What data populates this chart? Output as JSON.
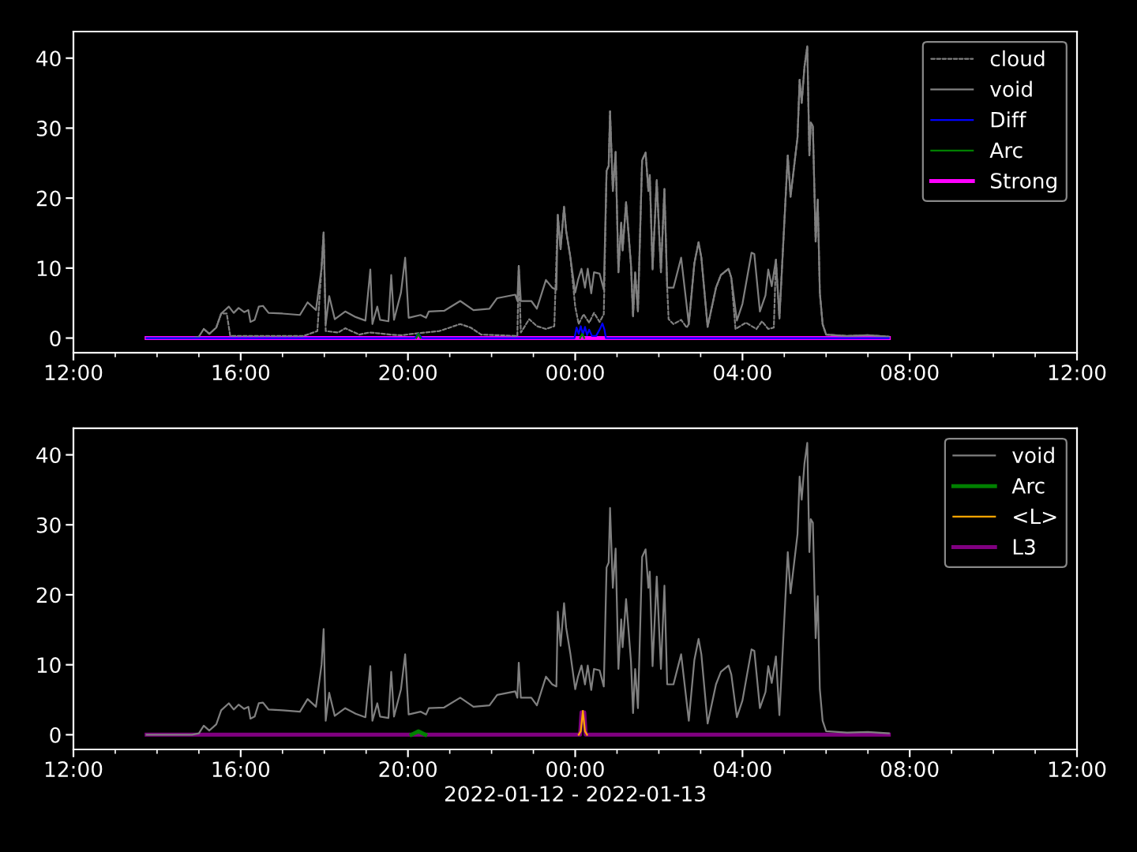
{
  "chart_data": [
    {
      "type": "line",
      "legend": "top right",
      "xlim": [
        "2022-01-12T12:00",
        "2022-01-13T12:00"
      ],
      "ylim": [
        -2.1,
        43.8
      ],
      "yticks": [
        0,
        10,
        20,
        30,
        40
      ],
      "xticks": [
        {
          "value": "2022-01-12T12:00",
          "label": "12:00"
        },
        {
          "value": "2022-01-12T13:00",
          "label": null
        },
        {
          "value": "2022-01-12T14:00",
          "label": null
        },
        {
          "value": "2022-01-12T15:00",
          "label": null
        },
        {
          "value": "2022-01-12T16:00",
          "label": "16:00"
        },
        {
          "value": "2022-01-12T17:00",
          "label": null
        },
        {
          "value": "2022-01-12T18:00",
          "label": null
        },
        {
          "value": "2022-01-12T19:00",
          "label": null
        },
        {
          "value": "2022-01-12T20:00",
          "label": "20:00"
        },
        {
          "value": "2022-01-12T21:00",
          "label": null
        },
        {
          "value": "2022-01-12T22:00",
          "label": null
        },
        {
          "value": "2022-01-12T23:00",
          "label": null
        },
        {
          "value": "2022-01-13T00:00",
          "label": "00:00"
        },
        {
          "value": "2022-01-13T01:00",
          "label": null
        },
        {
          "value": "2022-01-13T02:00",
          "label": null
        },
        {
          "value": "2022-01-13T03:00",
          "label": null
        },
        {
          "value": "2022-01-13T04:00",
          "label": "04:00"
        },
        {
          "value": "2022-01-13T05:00",
          "label": null
        },
        {
          "value": "2022-01-13T06:00",
          "label": null
        },
        {
          "value": "2022-01-13T07:00",
          "label": null
        },
        {
          "value": "2022-01-13T08:00",
          "label": "08:00"
        },
        {
          "value": "2022-01-13T09:00",
          "label": null
        },
        {
          "value": "2022-01-13T10:00",
          "label": null
        },
        {
          "value": "2022-01-13T11:00",
          "label": null
        },
        {
          "value": "2022-01-13T12:00",
          "label": "12:00"
        }
      ],
      "series": [
        {
          "name": "cloud",
          "color": "#808080",
          "line_style": "dashed",
          "x": [
            "2022-01-12T15:07",
            "2022-01-12T15:15",
            "2022-01-12T15:25",
            "2022-01-12T15:32",
            "2022-01-12T15:40",
            "2022-01-12T15:45",
            "2022-01-12T17:30",
            "2022-01-12T17:50",
            "2022-01-12T17:56",
            "2022-01-12T17:59",
            "2022-01-12T18:02",
            "2022-01-12T18:20",
            "2022-01-12T18:30",
            "2022-01-12T18:50",
            "2022-01-12T19:05",
            "2022-01-12T19:35",
            "2022-01-12T19:50",
            "2022-01-12T20:15",
            "2022-01-12T20:45",
            "2022-01-12T21:15",
            "2022-01-12T21:30",
            "2022-01-12T21:45",
            "2022-01-12T22:37",
            "2022-01-12T22:39",
            "2022-01-12T22:42",
            "2022-01-12T22:54",
            "2022-01-12T23:05",
            "2022-01-12T23:18",
            "2022-01-12T23:30",
            "2022-01-12T23:35",
            "2022-01-12T23:39",
            "2022-01-12T23:44",
            "2022-01-12T23:47",
            "2022-01-12T23:53",
            "2022-01-13T00:00",
            "2022-01-13T00:05",
            "2022-01-13T00:12",
            "2022-01-13T00:20",
            "2022-01-13T00:27",
            "2022-01-13T00:35",
            "2022-01-13T00:41",
            "2022-01-13T00:45",
            "2022-01-13T00:48",
            "2022-01-13T00:50",
            "2022-01-13T00:54",
            "2022-01-13T00:58",
            "2022-01-13T01:00",
            "2022-01-13T01:02",
            "2022-01-13T01:06",
            "2022-01-13T01:08",
            "2022-01-13T01:13",
            "2022-01-13T01:20",
            "2022-01-13T01:23",
            "2022-01-13T01:26",
            "2022-01-13T01:30",
            "2022-01-13T01:36",
            "2022-01-13T01:41",
            "2022-01-13T01:45",
            "2022-01-13T01:47",
            "2022-01-13T01:51",
            "2022-01-13T01:57",
            "2022-01-13T02:03",
            "2022-01-13T02:08",
            "2022-01-13T02:12",
            "2022-01-13T02:14",
            "2022-01-13T02:21",
            "2022-01-13T02:32",
            "2022-01-13T02:40",
            "2022-01-13T02:43",
            "2022-01-13T02:51",
            "2022-01-13T02:57",
            "2022-01-13T03:01",
            "2022-01-13T03:10",
            "2022-01-13T03:22",
            "2022-01-13T03:29",
            "2022-01-13T03:40",
            "2022-01-13T03:44",
            "2022-01-13T03:50",
            "2022-01-13T04:05",
            "2022-01-13T04:20",
            "2022-01-13T04:28",
            "2022-01-13T04:37",
            "2022-01-13T04:45",
            "2022-01-13T04:48",
            "2022-01-13T04:53",
            "2022-01-13T05:05",
            "2022-01-13T05:09",
            "2022-01-13T05:19",
            "2022-01-13T05:22",
            "2022-01-13T05:25",
            "2022-01-13T05:29",
            "2022-01-13T05:33",
            "2022-01-13T05:36",
            "2022-01-13T05:38",
            "2022-01-13T05:41",
            "2022-01-13T05:45",
            "2022-01-13T05:48",
            "2022-01-13T05:51",
            "2022-01-13T05:55",
            "2022-01-13T06:00",
            "2022-01-13T06:30",
            "2022-01-13T07:00",
            "2022-01-13T07:30"
          ],
          "values": [
            1.3,
            0.6,
            1.5,
            3.5,
            3.5,
            0.3,
            0.3,
            1.0,
            10.0,
            15.1,
            1.0,
            0.8,
            1.4,
            0.5,
            0.8,
            0.5,
            0.4,
            0.7,
            1.0,
            2.0,
            1.5,
            0.5,
            0.3,
            10.3,
            0.8,
            2.7,
            1.7,
            1.3,
            1.7,
            17.6,
            12.7,
            18.8,
            15.3,
            11.6,
            4.5,
            2.0,
            3.4,
            2.2,
            3.6,
            2.3,
            3.4,
            23.9,
            24.6,
            32.4,
            21.0,
            26.6,
            18.0,
            9.4,
            16.5,
            12.5,
            19.4,
            10.5,
            3.1,
            9.4,
            3.8,
            25.4,
            26.5,
            21.0,
            23.3,
            9.8,
            22.6,
            9.4,
            21.3,
            7.2,
            2.7,
            2.0,
            2.6,
            1.5,
            2.0,
            10.7,
            13.7,
            11.5,
            1.6,
            7.2,
            9.0,
            9.9,
            8.6,
            1.3,
            2.2,
            1.3,
            2.4,
            1.3,
            1.5,
            11.2,
            2.8,
            26.1,
            20.2,
            28.7,
            36.9,
            33.6,
            38.8,
            41.7,
            26.1,
            30.8,
            30.3,
            13.8,
            19.8,
            6.5,
            2.0,
            0.5,
            0.3,
            0.4,
            0.2
          ]
        },
        {
          "name": "void",
          "color": "#808080",
          "x": [
            "2022-01-12T13:45",
            "2022-01-12T14:50",
            "2022-01-12T15:00",
            "2022-01-12T15:07",
            "2022-01-12T15:15",
            "2022-01-12T15:25",
            "2022-01-12T15:32",
            "2022-01-12T15:43",
            "2022-01-12T15:50",
            "2022-01-12T15:57",
            "2022-01-12T16:05",
            "2022-01-12T16:11",
            "2022-01-12T16:14",
            "2022-01-12T16:20",
            "2022-01-12T16:26",
            "2022-01-12T16:32",
            "2022-01-12T16:40",
            "2022-01-12T17:00",
            "2022-01-12T17:25",
            "2022-01-12T17:36",
            "2022-01-12T17:48",
            "2022-01-12T17:56",
            "2022-01-12T17:59",
            "2022-01-12T18:02",
            "2022-01-12T18:07",
            "2022-01-12T18:15",
            "2022-01-12T18:30",
            "2022-01-12T18:45",
            "2022-01-12T18:59",
            "2022-01-12T19:06",
            "2022-01-12T19:09",
            "2022-01-12T19:16",
            "2022-01-12T19:20",
            "2022-01-12T19:32",
            "2022-01-12T19:36",
            "2022-01-12T19:40",
            "2022-01-12T19:50",
            "2022-01-12T19:56",
            "2022-01-12T20:01",
            "2022-01-12T20:18",
            "2022-01-12T20:26",
            "2022-01-12T20:30",
            "2022-01-12T20:52",
            "2022-01-12T21:15",
            "2022-01-12T21:34",
            "2022-01-12T21:57",
            "2022-01-12T22:08",
            "2022-01-12T22:34",
            "2022-01-12T22:37",
            "2022-01-12T22:39",
            "2022-01-12T22:42",
            "2022-01-12T22:57",
            "2022-01-12T23:05",
            "2022-01-12T23:18",
            "2022-01-12T23:27",
            "2022-01-12T23:33",
            "2022-01-12T23:35",
            "2022-01-12T23:39",
            "2022-01-12T23:44",
            "2022-01-12T23:47",
            "2022-01-12T23:53",
            "2022-01-13T00:00",
            "2022-01-13T00:04",
            "2022-01-13T00:09",
            "2022-01-13T00:14",
            "2022-01-13T00:18",
            "2022-01-13T00:23",
            "2022-01-13T00:27",
            "2022-01-13T00:35",
            "2022-01-13T00:41",
            "2022-01-13T00:45",
            "2022-01-13T00:48",
            "2022-01-13T00:50",
            "2022-01-13T00:54",
            "2022-01-13T00:58",
            "2022-01-13T01:00",
            "2022-01-13T01:02",
            "2022-01-13T01:06",
            "2022-01-13T01:08",
            "2022-01-13T01:13",
            "2022-01-13T01:20",
            "2022-01-13T01:23",
            "2022-01-13T01:26",
            "2022-01-13T01:30",
            "2022-01-13T01:36",
            "2022-01-13T01:41",
            "2022-01-13T01:45",
            "2022-01-13T01:47",
            "2022-01-13T01:51",
            "2022-01-13T01:57",
            "2022-01-13T02:03",
            "2022-01-13T02:08",
            "2022-01-13T02:12",
            "2022-01-13T02:21",
            "2022-01-13T02:32",
            "2022-01-13T02:43",
            "2022-01-13T02:51",
            "2022-01-13T02:57",
            "2022-01-13T03:01",
            "2022-01-13T03:10",
            "2022-01-13T03:22",
            "2022-01-13T03:29",
            "2022-01-13T03:40",
            "2022-01-13T03:44",
            "2022-01-13T03:52",
            "2022-01-13T04:00",
            "2022-01-13T04:13",
            "2022-01-13T04:17",
            "2022-01-13T04:25",
            "2022-01-13T04:33",
            "2022-01-13T04:37",
            "2022-01-13T04:42",
            "2022-01-13T04:48",
            "2022-01-13T04:53",
            "2022-01-13T05:05",
            "2022-01-13T05:09",
            "2022-01-13T05:19",
            "2022-01-13T05:22",
            "2022-01-13T05:25",
            "2022-01-13T05:29",
            "2022-01-13T05:33",
            "2022-01-13T05:36",
            "2022-01-13T05:38",
            "2022-01-13T05:41",
            "2022-01-13T05:45",
            "2022-01-13T05:48",
            "2022-01-13T05:51",
            "2022-01-13T05:55",
            "2022-01-13T06:00",
            "2022-01-13T06:30",
            "2022-01-13T07:00",
            "2022-01-13T07:30"
          ],
          "values": [
            0,
            0,
            0.2,
            1.3,
            0.6,
            1.5,
            3.5,
            4.5,
            3.6,
            4.3,
            3.7,
            4.0,
            2.3,
            2.6,
            4.5,
            4.6,
            3.6,
            3.5,
            3.3,
            5.1,
            4.0,
            10.0,
            15.1,
            2.0,
            6.0,
            2.7,
            3.8,
            3.0,
            2.5,
            9.8,
            2.0,
            4.5,
            2.6,
            2.4,
            9.0,
            2.6,
            6.5,
            11.5,
            2.9,
            3.3,
            2.9,
            3.8,
            3.9,
            5.3,
            4.0,
            4.2,
            5.7,
            6.2,
            5.3,
            10.3,
            5.3,
            5.3,
            4.2,
            8.3,
            7.2,
            6.9,
            17.6,
            12.7,
            18.8,
            15.3,
            11.6,
            6.5,
            8.3,
            9.9,
            7.2,
            9.9,
            6.4,
            9.4,
            9.2,
            6.9,
            23.9,
            24.6,
            32.4,
            21.0,
            26.6,
            18.0,
            9.4,
            16.5,
            12.5,
            19.4,
            10.5,
            3.1,
            9.4,
            3.8,
            25.4,
            26.5,
            21.0,
            23.3,
            9.8,
            22.6,
            9.4,
            21.3,
            7.2,
            7.2,
            11.5,
            2.0,
            10.7,
            13.7,
            11.5,
            1.6,
            7.2,
            9.0,
            9.9,
            8.6,
            2.5,
            4.9,
            12.2,
            12.0,
            3.8,
            6.1,
            9.8,
            7.4,
            11.2,
            2.8,
            26.1,
            20.2,
            28.7,
            36.9,
            33.6,
            38.8,
            41.7,
            26.1,
            30.8,
            30.3,
            13.8,
            19.8,
            6.5,
            2.0,
            0.5,
            0.3,
            0.4,
            0.2
          ]
        },
        {
          "name": "Diff",
          "color": "#0000ff",
          "x": [
            "2022-01-12T13:45",
            "2022-01-12T20:10",
            "2022-01-12T20:15",
            "2022-01-12T20:20",
            "2022-01-12T23:59",
            "2022-01-13T00:02",
            "2022-01-13T00:05",
            "2022-01-13T00:08",
            "2022-01-13T00:11",
            "2022-01-13T00:14",
            "2022-01-13T00:17",
            "2022-01-13T00:20",
            "2022-01-13T00:24",
            "2022-01-13T00:30",
            "2022-01-13T00:36",
            "2022-01-13T00:39",
            "2022-01-13T00:42",
            "2022-01-13T00:44",
            "2022-01-13T07:30"
          ],
          "values": [
            0,
            0,
            0.6,
            0,
            0,
            1.5,
            0.6,
            1.7,
            0.5,
            1.6,
            0.4,
            1.2,
            0.3,
            0.3,
            1.4,
            2.1,
            1.2,
            0,
            0
          ]
        },
        {
          "name": "Arc",
          "color": "#008000",
          "x": [
            "2022-01-12T20:12",
            "2022-01-12T20:15",
            "2022-01-12T20:18",
            "2022-01-12T22:00",
            "2022-01-13T00:07",
            "2022-01-13T00:10",
            "2022-01-13T00:13"
          ],
          "values": [
            0,
            0.6,
            0,
            null,
            0,
            0.6,
            0
          ]
        },
        {
          "name": "Strong",
          "color": "#ff00ff",
          "x": [
            "2022-01-12T13:45",
            "2022-01-13T07:30"
          ],
          "values": [
            0,
            0
          ]
        }
      ]
    },
    {
      "type": "line",
      "legend": "top right",
      "xlabel": "2022-01-12 - 2022-01-13",
      "xlim": [
        "2022-01-12T12:00",
        "2022-01-13T12:00"
      ],
      "ylim": [
        -2.1,
        43.8
      ],
      "yticks": [
        0,
        10,
        20,
        30,
        40
      ],
      "xticks": [
        {
          "value": "2022-01-12T12:00",
          "label": "12:00"
        },
        {
          "value": "2022-01-12T13:00",
          "label": null
        },
        {
          "value": "2022-01-12T14:00",
          "label": null
        },
        {
          "value": "2022-01-12T15:00",
          "label": null
        },
        {
          "value": "2022-01-12T16:00",
          "label": "16:00"
        },
        {
          "value": "2022-01-12T17:00",
          "label": null
        },
        {
          "value": "2022-01-12T18:00",
          "label": null
        },
        {
          "value": "2022-01-12T19:00",
          "label": null
        },
        {
          "value": "2022-01-12T20:00",
          "label": "20:00"
        },
        {
          "value": "2022-01-12T21:00",
          "label": null
        },
        {
          "value": "2022-01-12T22:00",
          "label": null
        },
        {
          "value": "2022-01-12T23:00",
          "label": null
        },
        {
          "value": "2022-01-13T00:00",
          "label": "00:00"
        },
        {
          "value": "2022-01-13T01:00",
          "label": null
        },
        {
          "value": "2022-01-13T02:00",
          "label": null
        },
        {
          "value": "2022-01-13T03:00",
          "label": null
        },
        {
          "value": "2022-01-13T04:00",
          "label": "04:00"
        },
        {
          "value": "2022-01-13T05:00",
          "label": null
        },
        {
          "value": "2022-01-13T06:00",
          "label": null
        },
        {
          "value": "2022-01-13T07:00",
          "label": null
        },
        {
          "value": "2022-01-13T08:00",
          "label": "08:00"
        },
        {
          "value": "2022-01-13T09:00",
          "label": null
        },
        {
          "value": "2022-01-13T10:00",
          "label": null
        },
        {
          "value": "2022-01-13T11:00",
          "label": null
        },
        {
          "value": "2022-01-13T12:00",
          "label": "12:00"
        }
      ],
      "series": [
        {
          "name": "void",
          "color": "#808080",
          "x": [
            "2022-01-12T13:45",
            "2022-01-12T14:50",
            "2022-01-12T15:00",
            "2022-01-12T15:07",
            "2022-01-12T15:15",
            "2022-01-12T15:25",
            "2022-01-12T15:32",
            "2022-01-12T15:43",
            "2022-01-12T15:50",
            "2022-01-12T15:57",
            "2022-01-12T16:05",
            "2022-01-12T16:11",
            "2022-01-12T16:14",
            "2022-01-12T16:20",
            "2022-01-12T16:26",
            "2022-01-12T16:32",
            "2022-01-12T16:40",
            "2022-01-12T17:00",
            "2022-01-12T17:25",
            "2022-01-12T17:36",
            "2022-01-12T17:48",
            "2022-01-12T17:56",
            "2022-01-12T17:59",
            "2022-01-12T18:02",
            "2022-01-12T18:07",
            "2022-01-12T18:15",
            "2022-01-12T18:30",
            "2022-01-12T18:45",
            "2022-01-12T18:59",
            "2022-01-12T19:06",
            "2022-01-12T19:09",
            "2022-01-12T19:16",
            "2022-01-12T19:20",
            "2022-01-12T19:32",
            "2022-01-12T19:36",
            "2022-01-12T19:40",
            "2022-01-12T19:50",
            "2022-01-12T19:56",
            "2022-01-12T20:01",
            "2022-01-12T20:18",
            "2022-01-12T20:26",
            "2022-01-12T20:30",
            "2022-01-12T20:52",
            "2022-01-12T21:15",
            "2022-01-12T21:34",
            "2022-01-12T21:57",
            "2022-01-12T22:08",
            "2022-01-12T22:34",
            "2022-01-12T22:37",
            "2022-01-12T22:39",
            "2022-01-12T22:42",
            "2022-01-12T22:57",
            "2022-01-12T23:05",
            "2022-01-12T23:18",
            "2022-01-12T23:27",
            "2022-01-12T23:33",
            "2022-01-12T23:35",
            "2022-01-12T23:39",
            "2022-01-12T23:44",
            "2022-01-12T23:47",
            "2022-01-12T23:53",
            "2022-01-13T00:00",
            "2022-01-13T00:04",
            "2022-01-13T00:09",
            "2022-01-13T00:14",
            "2022-01-13T00:18",
            "2022-01-13T00:23",
            "2022-01-13T00:27",
            "2022-01-13T00:35",
            "2022-01-13T00:41",
            "2022-01-13T00:45",
            "2022-01-13T00:48",
            "2022-01-13T00:50",
            "2022-01-13T00:54",
            "2022-01-13T00:58",
            "2022-01-13T01:00",
            "2022-01-13T01:02",
            "2022-01-13T01:06",
            "2022-01-13T01:08",
            "2022-01-13T01:13",
            "2022-01-13T01:20",
            "2022-01-13T01:23",
            "2022-01-13T01:26",
            "2022-01-13T01:30",
            "2022-01-13T01:36",
            "2022-01-13T01:41",
            "2022-01-13T01:45",
            "2022-01-13T01:47",
            "2022-01-13T01:51",
            "2022-01-13T01:57",
            "2022-01-13T02:03",
            "2022-01-13T02:08",
            "2022-01-13T02:12",
            "2022-01-13T02:21",
            "2022-01-13T02:32",
            "2022-01-13T02:43",
            "2022-01-13T02:51",
            "2022-01-13T02:57",
            "2022-01-13T03:01",
            "2022-01-13T03:10",
            "2022-01-13T03:22",
            "2022-01-13T03:29",
            "2022-01-13T03:40",
            "2022-01-13T03:44",
            "2022-01-13T03:52",
            "2022-01-13T04:00",
            "2022-01-13T04:13",
            "2022-01-13T04:17",
            "2022-01-13T04:25",
            "2022-01-13T04:33",
            "2022-01-13T04:37",
            "2022-01-13T04:42",
            "2022-01-13T04:48",
            "2022-01-13T04:53",
            "2022-01-13T05:05",
            "2022-01-13T05:09",
            "2022-01-13T05:19",
            "2022-01-13T05:22",
            "2022-01-13T05:25",
            "2022-01-13T05:29",
            "2022-01-13T05:33",
            "2022-01-13T05:36",
            "2022-01-13T05:38",
            "2022-01-13T05:41",
            "2022-01-13T05:45",
            "2022-01-13T05:48",
            "2022-01-13T05:51",
            "2022-01-13T05:55",
            "2022-01-13T06:00",
            "2022-01-13T06:30",
            "2022-01-13T07:00",
            "2022-01-13T07:30"
          ],
          "values": [
            0,
            0,
            0.2,
            1.3,
            0.6,
            1.5,
            3.5,
            4.5,
            3.6,
            4.3,
            3.7,
            4.0,
            2.3,
            2.6,
            4.5,
            4.6,
            3.6,
            3.5,
            3.3,
            5.1,
            4.0,
            10.0,
            15.1,
            2.0,
            6.0,
            2.7,
            3.8,
            3.0,
            2.5,
            9.8,
            2.0,
            4.5,
            2.6,
            2.4,
            9.0,
            2.6,
            6.5,
            11.5,
            2.9,
            3.3,
            2.9,
            3.8,
            3.9,
            5.3,
            4.0,
            4.2,
            5.7,
            6.2,
            5.3,
            10.3,
            5.3,
            5.3,
            4.2,
            8.3,
            7.2,
            6.9,
            17.6,
            12.7,
            18.8,
            15.3,
            11.6,
            6.5,
            8.3,
            9.9,
            7.2,
            9.9,
            6.4,
            9.4,
            9.2,
            6.9,
            23.9,
            24.6,
            32.4,
            21.0,
            26.6,
            18.0,
            9.4,
            16.5,
            12.5,
            19.4,
            10.5,
            3.1,
            9.4,
            3.8,
            25.4,
            26.5,
            21.0,
            23.3,
            9.8,
            22.6,
            9.4,
            21.3,
            7.2,
            7.2,
            11.5,
            2.0,
            10.7,
            13.7,
            11.5,
            1.6,
            7.2,
            9.0,
            9.9,
            8.6,
            2.5,
            4.9,
            12.2,
            12.0,
            3.8,
            6.1,
            9.8,
            7.4,
            11.2,
            2.8,
            26.1,
            20.2,
            28.7,
            36.9,
            33.6,
            38.8,
            41.7,
            26.1,
            30.8,
            30.3,
            13.8,
            19.8,
            6.5,
            2.0,
            0.5,
            0.3,
            0.4,
            0.2
          ]
        },
        {
          "name": "Arc",
          "color": "#008000",
          "x": [
            "2022-01-12T20:05",
            "2022-01-12T20:15",
            "2022-01-12T20:25"
          ],
          "values": [
            0,
            0.5,
            0
          ]
        },
        {
          "name": "<L>",
          "color": "#ffa500",
          "x": [
            "2022-01-13T00:05",
            "2022-01-13T00:08",
            "2022-01-13T00:11",
            "2022-01-13T00:14",
            "2022-01-13T00:17"
          ],
          "values": [
            0,
            0.5,
            3.4,
            0.5,
            0
          ]
        },
        {
          "name": "L3",
          "color": "#800080",
          "x": [
            "2022-01-12T13:45",
            "2022-01-13T00:07",
            "2022-01-13T00:09",
            "2022-01-13T00:13",
            "2022-01-13T00:15",
            "2022-01-13T07:30"
          ],
          "values": [
            0,
            0,
            3.2,
            3.2,
            0,
            0
          ]
        }
      ]
    }
  ]
}
